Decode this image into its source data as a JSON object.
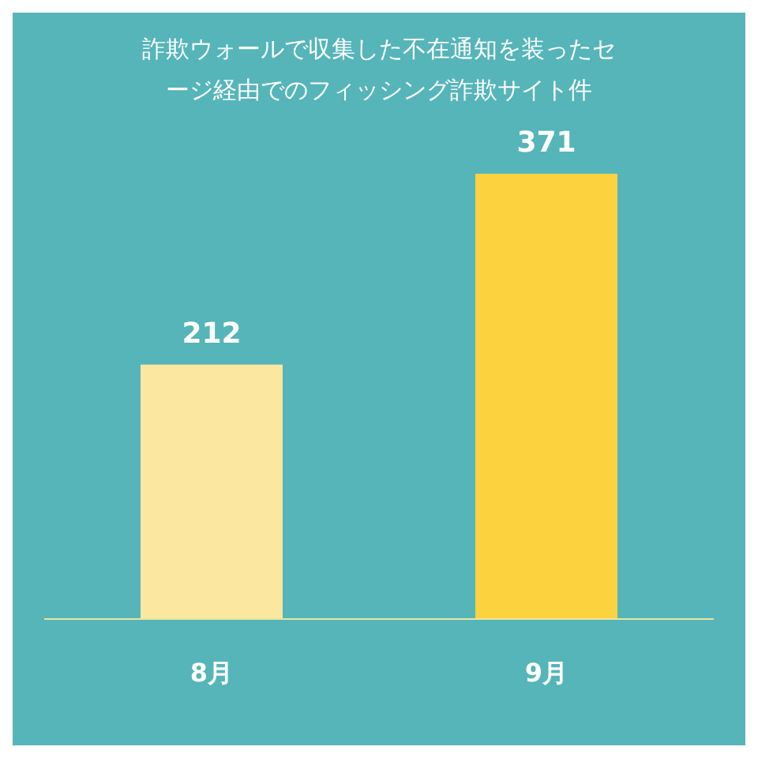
{
  "chart_data": {
    "type": "bar",
    "title": "詐欺ウォールで収集した不在通知を装ったセージ経由でのフィッシング詐欺サイト件",
    "categories": [
      "8月",
      "9月"
    ],
    "values": [
      212,
      371
    ],
    "colors": [
      "#fbe7a0",
      "#fcd33e"
    ],
    "data_labels": true
  }
}
